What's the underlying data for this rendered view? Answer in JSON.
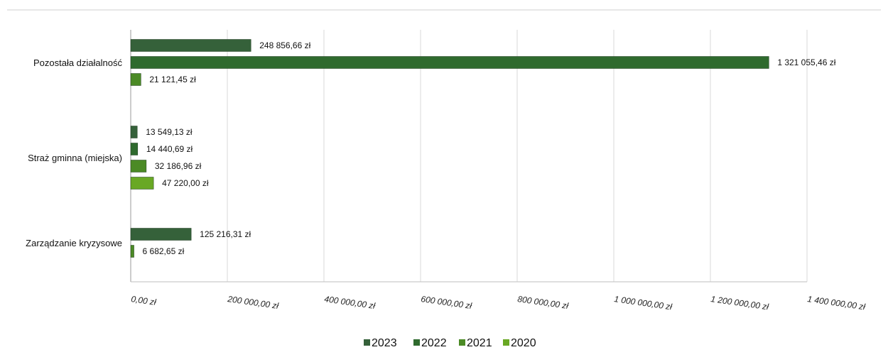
{
  "chart_data": {
    "type": "bar",
    "orientation": "horizontal",
    "categories": [
      "Pozostała działalność",
      "Straż gminna (miejska)",
      "Zarządzanie kryzysowe"
    ],
    "series": [
      {
        "name": "2023",
        "color": "#35613a",
        "values": [
          248856.66,
          13549.13,
          125216.31
        ],
        "labels": [
          "248 856,66 zł",
          "13 549,13 zł",
          "125 216,31 zł"
        ]
      },
      {
        "name": "2022",
        "color": "#2f6a2e",
        "values": [
          1321055.46,
          14440.69,
          null
        ],
        "labels": [
          "1 321 055,46 zł",
          "14 440,69 zł",
          null
        ]
      },
      {
        "name": "2021",
        "color": "#4b8a25",
        "values": [
          21121.45,
          32186.96,
          6682.65
        ],
        "labels": [
          "21 121,45 zł",
          "32 186,96 zł",
          "6 682,65 zł"
        ]
      },
      {
        "name": "2020",
        "color": "#69a824",
        "values": [
          null,
          47220.0,
          null
        ],
        "labels": [
          null,
          "47 220,00 zł",
          null
        ]
      }
    ],
    "xlim": [
      0,
      1400000
    ],
    "xticks": [
      0,
      200000,
      400000,
      600000,
      800000,
      1000000,
      1200000,
      1400000
    ],
    "xtick_labels": [
      "0,00 zł",
      "200 000,00 zł",
      "400 000,00 zł",
      "600 000,00 zł",
      "800 000,00 zł",
      "1 000 000,00 zł",
      "1 200 000,00 zł",
      "1 400 000,00 zł"
    ],
    "grid": true,
    "legend_position": "bottom",
    "title": "",
    "xlabel": "",
    "ylabel": ""
  }
}
